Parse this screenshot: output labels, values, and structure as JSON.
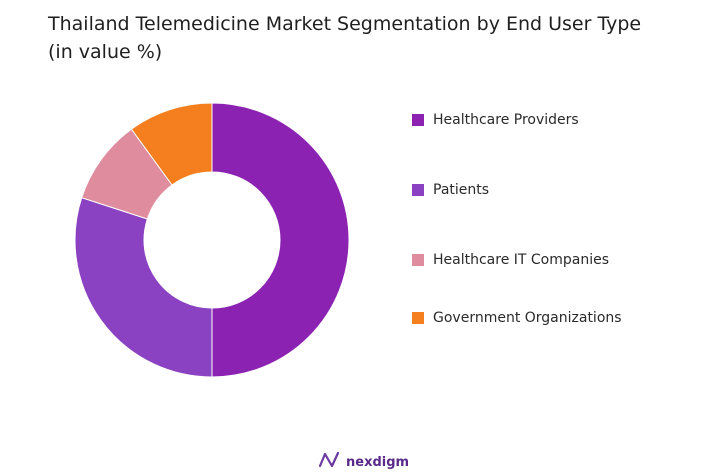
{
  "title": "Thailand Telemedicine Market Segmentation by End User Type (in value %)",
  "colors": {
    "healthcare_providers": "#8b22b2",
    "patients": "#8a42c2",
    "healthcare_it": "#e08c9f",
    "government": "#f57f1f"
  },
  "chart_data": {
    "type": "pie",
    "donut": true,
    "title": "Thailand Telemedicine Market Segmentation by End User Type (in value %)",
    "categories": [
      "Healthcare Providers",
      "Patients",
      "Healthcare IT Companies",
      "Government Organizations"
    ],
    "values": [
      50,
      30,
      10,
      10
    ],
    "colors": [
      "#8b22b2",
      "#8a42c2",
      "#e08c9f",
      "#f57f1f"
    ],
    "legend": "right"
  },
  "brand": {
    "name": "nexdigm",
    "icon": "nexdigm-logo-icon"
  }
}
